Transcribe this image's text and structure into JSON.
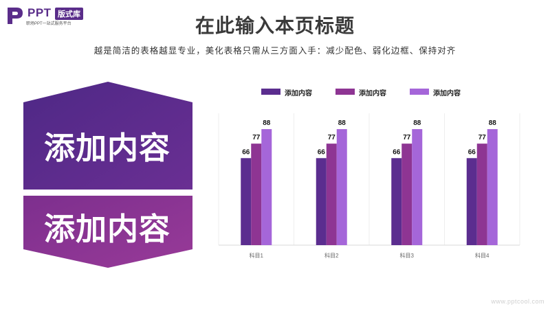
{
  "logo": {
    "brand": "PPT",
    "badge": "版式库",
    "tagline": "职场PPT一站式服务平台"
  },
  "header": {
    "title": "在此输入本页标题",
    "subtitle": "越是简洁的表格越显专业，美化表格只需从三方面入手：减少配色、弱化边框、保持对齐"
  },
  "panels": {
    "top_text": "添加内容",
    "bottom_text": "添加内容",
    "top_color": "#5b2d8f",
    "bottom_color": "#8e3593"
  },
  "chart_data": {
    "type": "bar",
    "categories": [
      "科目1",
      "科目2",
      "科目3",
      "科目4"
    ],
    "series": [
      {
        "name": "添加内容",
        "values": [
          66,
          66,
          66,
          66
        ],
        "color": "#5b2d8f"
      },
      {
        "name": "添加内容",
        "values": [
          77,
          77,
          77,
          77
        ],
        "color": "#8e3593"
      },
      {
        "name": "添加内容",
        "values": [
          88,
          88,
          88,
          88
        ],
        "color": "#a566d9"
      }
    ],
    "ylim": [
      0,
      100
    ],
    "legend_position": "top",
    "data_labels": true,
    "grid": true
  },
  "watermark": "www.pptcool.com"
}
